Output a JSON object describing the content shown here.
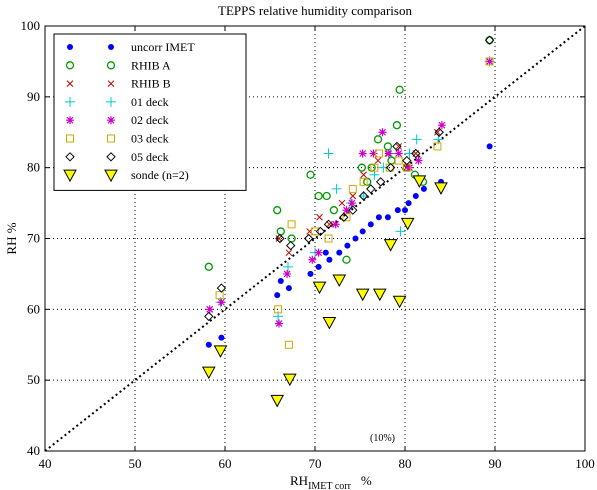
{
  "chart_data": {
    "type": "scatter",
    "title": "TEPPS relative humidity comparison",
    "xlabel": "RH",
    "xlabel_sub": "IMET corr",
    "xlabel_unit": "%",
    "ylabel": "RH  %",
    "xlim": [
      40,
      100
    ],
    "ylim": [
      40,
      100
    ],
    "xticks": [
      40,
      50,
      60,
      70,
      80,
      90,
      100
    ],
    "yticks": [
      40,
      50,
      60,
      70,
      80,
      90,
      100
    ],
    "grid": true,
    "legend_position": "top-left",
    "reference_line": {
      "style": "dotted",
      "from": [
        40,
        40
      ],
      "to": [
        100,
        100
      ]
    },
    "annotation": {
      "text": "(10%)",
      "x": 77.5,
      "y": 41
    },
    "series": [
      {
        "name": "uncorr IMET",
        "marker": "dot",
        "color": "#0000ff",
        "points": [
          [
            58.2,
            55
          ],
          [
            59.6,
            56
          ],
          [
            65.8,
            62
          ],
          [
            66.2,
            64
          ],
          [
            67.1,
            63
          ],
          [
            69.5,
            65
          ],
          [
            70.4,
            66
          ],
          [
            71.2,
            68
          ],
          [
            71.6,
            67
          ],
          [
            72.7,
            68
          ],
          [
            73.6,
            69
          ],
          [
            74.5,
            70
          ],
          [
            75.3,
            71
          ],
          [
            76.2,
            72
          ],
          [
            77.1,
            73
          ],
          [
            78.1,
            73
          ],
          [
            79.2,
            74
          ],
          [
            80.0,
            74
          ],
          [
            80.4,
            75
          ],
          [
            81.2,
            76
          ],
          [
            82.1,
            77
          ],
          [
            84.0,
            78
          ],
          [
            89.4,
            83
          ]
        ]
      },
      {
        "name": "RHIB A",
        "marker": "circle",
        "color": "#009900",
        "points": [
          [
            58.2,
            66
          ],
          [
            65.8,
            74
          ],
          [
            66.2,
            71
          ],
          [
            67.4,
            70
          ],
          [
            69.5,
            79
          ],
          [
            70.4,
            76
          ],
          [
            71.3,
            76
          ],
          [
            72.1,
            74
          ],
          [
            73.5,
            67
          ],
          [
            75.2,
            80
          ],
          [
            75.8,
            78
          ],
          [
            76.3,
            80
          ],
          [
            77.0,
            84
          ],
          [
            78.1,
            83
          ],
          [
            78.5,
            81
          ],
          [
            79.1,
            86
          ],
          [
            79.4,
            91
          ],
          [
            80.2,
            80
          ],
          [
            81.1,
            79
          ],
          [
            82.0,
            78
          ],
          [
            89.4,
            98
          ]
        ]
      },
      {
        "name": "RHIB B",
        "marker": "x",
        "color": "#cc0000",
        "points": [
          [
            58.3,
            60
          ],
          [
            66.0,
            70
          ],
          [
            67.1,
            68
          ],
          [
            69.4,
            71
          ],
          [
            70.5,
            73
          ],
          [
            71.6,
            72
          ],
          [
            73.0,
            75
          ],
          [
            74.2,
            76
          ],
          [
            75.4,
            79
          ],
          [
            77.0,
            81
          ],
          [
            78.1,
            82
          ],
          [
            79.3,
            83
          ],
          [
            80.2,
            80
          ],
          [
            81.2,
            82
          ],
          [
            83.6,
            85
          ],
          [
            89.4,
            95
          ]
        ]
      },
      {
        "name": "01 deck",
        "marker": "plus",
        "color": "#00cccc",
        "points": [
          [
            59.5,
            61
          ],
          [
            65.9,
            59
          ],
          [
            67.0,
            66
          ],
          [
            70.0,
            68
          ],
          [
            71.5,
            82
          ],
          [
            72.4,
            77
          ],
          [
            74.0,
            75
          ],
          [
            75.4,
            76
          ],
          [
            76.6,
            79
          ],
          [
            77.6,
            80
          ],
          [
            78.4,
            82
          ],
          [
            79.5,
            71
          ],
          [
            80.5,
            82
          ],
          [
            81.3,
            84
          ],
          [
            83.7,
            84
          ],
          [
            89.4,
            95
          ]
        ]
      },
      {
        "name": "02 deck",
        "marker": "star",
        "color": "#cc00cc",
        "points": [
          [
            58.3,
            60
          ],
          [
            59.6,
            61
          ],
          [
            66.0,
            58
          ],
          [
            66.9,
            65
          ],
          [
            69.7,
            67
          ],
          [
            70.4,
            68
          ],
          [
            72.3,
            72
          ],
          [
            73.5,
            74
          ],
          [
            74.1,
            75
          ],
          [
            75.3,
            82
          ],
          [
            76.5,
            82
          ],
          [
            77.5,
            85
          ],
          [
            78.2,
            82
          ],
          [
            79.3,
            82
          ],
          [
            80.5,
            80
          ],
          [
            81.5,
            81
          ],
          [
            84.1,
            86
          ],
          [
            89.4,
            95
          ]
        ]
      },
      {
        "name": "03 deck",
        "marker": "square",
        "color": "#ccaa00",
        "points": [
          [
            59.4,
            62
          ],
          [
            65.9,
            60
          ],
          [
            67.1,
            55
          ],
          [
            67.4,
            72
          ],
          [
            70.0,
            71
          ],
          [
            71.5,
            70
          ],
          [
            73.5,
            73
          ],
          [
            74.2,
            77
          ],
          [
            75.4,
            78
          ],
          [
            76.6,
            80
          ],
          [
            77.1,
            82
          ],
          [
            78.3,
            80
          ],
          [
            79.3,
            81
          ],
          [
            80.2,
            80
          ],
          [
            83.6,
            83
          ],
          [
            89.4,
            95
          ]
        ]
      },
      {
        "name": "05 deck",
        "marker": "diamond",
        "color": "#000000",
        "points": [
          [
            58.2,
            59
          ],
          [
            59.6,
            63
          ],
          [
            66.1,
            70
          ],
          [
            67.3,
            69
          ],
          [
            69.3,
            70
          ],
          [
            70.6,
            71
          ],
          [
            71.5,
            72
          ],
          [
            73.2,
            73
          ],
          [
            74.2,
            74
          ],
          [
            75.4,
            76
          ],
          [
            76.2,
            77
          ],
          [
            77.3,
            78
          ],
          [
            78.4,
            80
          ],
          [
            79.1,
            83
          ],
          [
            80.2,
            81
          ],
          [
            81.2,
            82
          ],
          [
            83.8,
            85
          ],
          [
            89.4,
            98
          ]
        ]
      },
      {
        "name": "sonde (n=2)",
        "marker": "triangle-down",
        "color": "#ffff00",
        "points": [
          [
            58.2,
            51
          ],
          [
            59.5,
            54
          ],
          [
            65.8,
            47
          ],
          [
            67.2,
            50
          ],
          [
            70.5,
            63
          ],
          [
            71.6,
            58
          ],
          [
            72.7,
            64
          ],
          [
            75.3,
            62
          ],
          [
            77.2,
            62
          ],
          [
            78.4,
            69
          ],
          [
            79.4,
            61
          ],
          [
            80.3,
            72
          ],
          [
            81.6,
            78
          ],
          [
            84.0,
            77
          ]
        ]
      }
    ]
  }
}
